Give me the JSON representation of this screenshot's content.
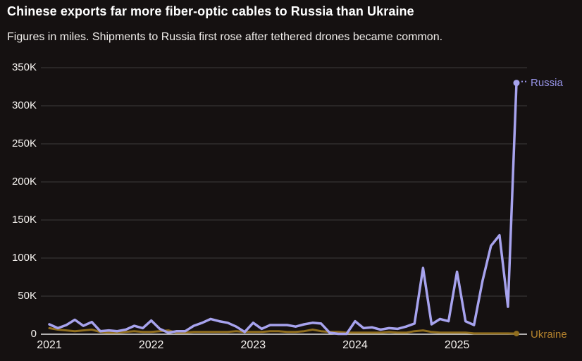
{
  "header": {
    "title": "Chinese exports far more fiber-optic cables to Russia than Ukraine",
    "subtitle": "Figures in miles. Shipments to Russia first rose after tethered drones became common."
  },
  "colors": {
    "background": "#151111",
    "text": "#f5f2ef",
    "grid": "#3d3a3a",
    "axis_zero_line": "#e6e6e6",
    "russia_line": "#a7a3ee",
    "russia_label": "#9693e6",
    "ukraine_line": "#906e1e",
    "ukraine_label": "#b5832d"
  },
  "chart_data": {
    "type": "line",
    "title": "Chinese exports far more fiber-optic cables to Russia than Ukraine",
    "subtitle": "Figures in miles. Shipments to Russia first rose after tethered drones became common.",
    "unit": "miles",
    "frequency": "monthly",
    "grid": "horizontal",
    "legend_position": "line-end-labels",
    "x": [
      "2021-01",
      "2021-02",
      "2021-03",
      "2021-04",
      "2021-05",
      "2021-06",
      "2021-07",
      "2021-08",
      "2021-09",
      "2021-10",
      "2021-11",
      "2021-12",
      "2022-01",
      "2022-02",
      "2022-03",
      "2022-04",
      "2022-05",
      "2022-06",
      "2022-07",
      "2022-08",
      "2022-09",
      "2022-10",
      "2022-11",
      "2022-12",
      "2023-01",
      "2023-02",
      "2023-03",
      "2023-04",
      "2023-05",
      "2023-06",
      "2023-07",
      "2023-08",
      "2023-09",
      "2023-10",
      "2023-11",
      "2023-12",
      "2024-01",
      "2024-02",
      "2024-03",
      "2024-04",
      "2024-05",
      "2024-06",
      "2024-07",
      "2024-08",
      "2024-09",
      "2024-10",
      "2024-11",
      "2024-12",
      "2025-01",
      "2025-02",
      "2025-03",
      "2025-04",
      "2025-05",
      "2025-06",
      "2025-07",
      "2025-08"
    ],
    "series": [
      {
        "name": "Russia",
        "color": "#a7a3ee",
        "values": [
          13000,
          8000,
          12000,
          19000,
          11000,
          16000,
          4000,
          5000,
          4000,
          6000,
          11000,
          8000,
          18000,
          7000,
          2000,
          4000,
          4000,
          11000,
          15000,
          20000,
          17000,
          15000,
          10000,
          3000,
          15000,
          7000,
          12000,
          12000,
          12000,
          10000,
          13000,
          15000,
          14000,
          2000,
          500,
          500,
          17000,
          8000,
          9000,
          6000,
          8000,
          7000,
          10000,
          14000,
          87000,
          13000,
          20000,
          17000,
          82000,
          17000,
          12000,
          70000,
          116000,
          130000,
          36000,
          330000
        ]
      },
      {
        "name": "Ukraine",
        "color": "#906e1e",
        "values": [
          8000,
          6000,
          5000,
          4000,
          5000,
          6000,
          3000,
          2000,
          2000,
          3000,
          4000,
          3000,
          3000,
          4000,
          5000,
          2000,
          2000,
          3000,
          3000,
          3000,
          3000,
          3000,
          4000,
          3000,
          3000,
          3000,
          4000,
          4000,
          3000,
          3000,
          4000,
          6000,
          4000,
          3000,
          3000,
          2000,
          2000,
          2000,
          2000,
          2000,
          3000,
          2000,
          2000,
          4000,
          5000,
          3000,
          2000,
          2000,
          2000,
          2000,
          1000,
          1000,
          1000,
          1000,
          1000,
          800
        ]
      }
    ],
    "y_axis": {
      "min": 0,
      "max": 350000,
      "tick_interval": 50000,
      "tick_labels": [
        "0",
        "50K",
        "100K",
        "150K",
        "200K",
        "250K",
        "300K",
        "350K"
      ]
    },
    "x_axis": {
      "tick_labels": [
        "2021",
        "2022",
        "2023",
        "2024",
        "2025"
      ],
      "tick_month_indices": [
        0,
        12,
        24,
        36,
        48
      ]
    }
  }
}
